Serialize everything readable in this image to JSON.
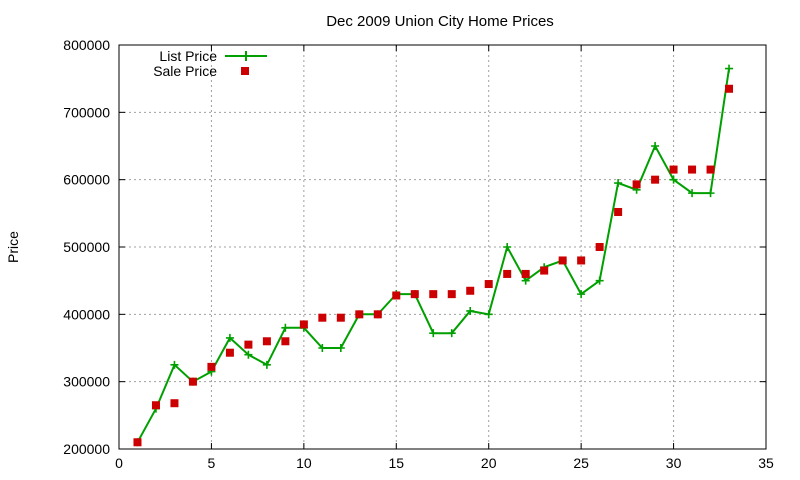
{
  "chart_data": {
    "type": "line",
    "title": "Dec 2009 Union City Home Prices",
    "xlabel": "",
    "ylabel": "Price",
    "xlim": [
      0,
      35
    ],
    "ylim": [
      200000,
      800000
    ],
    "x_ticks": [
      0,
      5,
      10,
      15,
      20,
      25,
      30,
      35
    ],
    "y_ticks": [
      200000,
      300000,
      400000,
      500000,
      600000,
      700000,
      800000
    ],
    "x_tick_labels": [
      "0",
      "5",
      "10",
      "15",
      "20",
      "25",
      "30",
      "35"
    ],
    "y_tick_labels": [
      "200000",
      "300000",
      "400000",
      "500000",
      "600000",
      "700000",
      "800000"
    ],
    "grid": true,
    "legend_position": "top-left",
    "x": [
      1,
      2,
      3,
      4,
      5,
      6,
      7,
      8,
      9,
      10,
      11,
      12,
      13,
      14,
      15,
      16,
      17,
      18,
      19,
      20,
      21,
      22,
      23,
      24,
      25,
      26,
      27,
      28,
      29,
      30,
      31,
      32,
      33
    ],
    "series": [
      {
        "name": "List Price",
        "style": "line+cross",
        "color": "#00a000",
        "values": [
          210000,
          260000,
          325000,
          300000,
          315000,
          365000,
          340000,
          325000,
          380000,
          380000,
          350000,
          350000,
          400000,
          400000,
          430000,
          430000,
          372000,
          372000,
          405000,
          400000,
          500000,
          450000,
          470000,
          480000,
          430000,
          450000,
          595000,
          585000,
          650000,
          600000,
          580000,
          580000,
          765000
        ]
      },
      {
        "name": "Sale Price",
        "style": "square",
        "color": "#cc0000",
        "values": [
          210000,
          265000,
          268000,
          300000,
          322000,
          343000,
          355000,
          360000,
          360000,
          385000,
          395000,
          395000,
          400000,
          400000,
          428000,
          430000,
          430000,
          430000,
          435000,
          445000,
          460000,
          460000,
          465000,
          480000,
          480000,
          500000,
          552000,
          593000,
          600000,
          615000,
          615000,
          615000,
          735000
        ]
      }
    ]
  }
}
